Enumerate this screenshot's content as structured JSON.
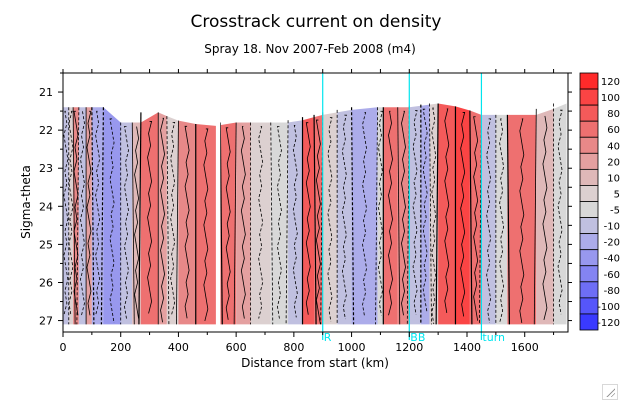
{
  "chart_data": {
    "type": "heatmap",
    "title": "Crosstrack current on density",
    "subtitle": "Spray 18. Nov 2007-Feb 2008 (m4)",
    "xlabel": "Distance from start (km)",
    "ylabel": "Sigma-theta",
    "xlim": [
      0,
      1750
    ],
    "ylim": [
      20.5,
      27.3
    ],
    "y_inverted": true,
    "xticks": [
      0,
      200,
      400,
      600,
      800,
      1000,
      1200,
      1400,
      1600
    ],
    "yticks": [
      21,
      22,
      23,
      24,
      25,
      26,
      27
    ],
    "colorbar": {
      "levels": [
        "120",
        "100",
        "80",
        "60",
        "40",
        "20",
        "10",
        "5",
        "-5",
        "-10",
        "-20",
        "-40",
        "-60",
        "-80",
        "-100",
        "-120"
      ],
      "colors": [
        "#ff2a2a",
        "#fb4444",
        "#f45a5a",
        "#ee7070",
        "#e88888",
        "#e4a0a0",
        "#dfb8b8",
        "#dcd0d0",
        "#d8d8d8",
        "#c0c0e0",
        "#acacea",
        "#9898ee",
        "#8484f2",
        "#6e6ef6",
        "#5656fa",
        "#3a3aff"
      ]
    },
    "markers": [
      {
        "label": "R",
        "x": 900
      },
      {
        "label": "BB",
        "x": 1200
      },
      {
        "label": "turn",
        "x": 1450
      }
    ],
    "marker_color": "#00e5ee",
    "bands": [
      {
        "x0": 0,
        "x1": 20,
        "v": -20
      },
      {
        "x0": 20,
        "x1": 35,
        "v": -5
      },
      {
        "x0": 35,
        "x1": 55,
        "v": 20
      },
      {
        "x0": 55,
        "x1": 80,
        "v": -20
      },
      {
        "x0": 80,
        "x1": 100,
        "v": 10
      },
      {
        "x0": 100,
        "x1": 140,
        "v": -40
      },
      {
        "x0": 140,
        "x1": 200,
        "v": -60
      },
      {
        "x0": 200,
        "x1": 240,
        "v": -20
      },
      {
        "x0": 240,
        "x1": 270,
        "v": 5
      },
      {
        "x0": 270,
        "x1": 330,
        "v": 40
      },
      {
        "x0": 330,
        "x1": 360,
        "v": 10
      },
      {
        "x0": 360,
        "x1": 400,
        "v": -5
      },
      {
        "x0": 400,
        "x1": 460,
        "v": 20
      },
      {
        "x0": 460,
        "x1": 530,
        "v": 40
      },
      {
        "x0": 545,
        "x1": 600,
        "v": 40
      },
      {
        "x0": 600,
        "x1": 650,
        "v": 10
      },
      {
        "x0": 650,
        "x1": 720,
        "v": -5
      },
      {
        "x0": 720,
        "x1": 780,
        "v": -10
      },
      {
        "x0": 780,
        "x1": 830,
        "v": -20
      },
      {
        "x0": 830,
        "x1": 870,
        "v": 60
      },
      {
        "x0": 870,
        "x1": 900,
        "v": 40
      },
      {
        "x0": 900,
        "x1": 950,
        "v": -5
      },
      {
        "x0": 950,
        "x1": 1000,
        "v": -20
      },
      {
        "x0": 1000,
        "x1": 1090,
        "v": -40
      },
      {
        "x0": 1090,
        "x1": 1110,
        "v": -10
      },
      {
        "x0": 1110,
        "x1": 1160,
        "v": 40
      },
      {
        "x0": 1160,
        "x1": 1200,
        "v": 20
      },
      {
        "x0": 1200,
        "x1": 1240,
        "v": -20
      },
      {
        "x0": 1240,
        "x1": 1270,
        "v": -40
      },
      {
        "x0": 1270,
        "x1": 1300,
        "v": -5
      },
      {
        "x0": 1300,
        "x1": 1360,
        "v": 60
      },
      {
        "x0": 1360,
        "x1": 1410,
        "v": 80
      },
      {
        "x0": 1410,
        "x1": 1450,
        "v": 40
      },
      {
        "x0": 1450,
        "x1": 1500,
        "v": -20
      },
      {
        "x0": 1500,
        "x1": 1540,
        "v": -10
      },
      {
        "x0": 1540,
        "x1": 1640,
        "v": 40
      },
      {
        "x0": 1640,
        "x1": 1700,
        "v": 5
      },
      {
        "x0": 1700,
        "x1": 1745,
        "v": -10
      }
    ],
    "top_surface": [
      {
        "x": 0,
        "y": 21.4
      },
      {
        "x": 100,
        "y": 21.4
      },
      {
        "x": 120,
        "y": 21.3
      },
      {
        "x": 160,
        "y": 21.5
      },
      {
        "x": 200,
        "y": 21.8
      },
      {
        "x": 270,
        "y": 21.8
      },
      {
        "x": 320,
        "y": 21.5
      },
      {
        "x": 380,
        "y": 21.7
      },
      {
        "x": 420,
        "y": 21.8
      },
      {
        "x": 520,
        "y": 21.9
      },
      {
        "x": 600,
        "y": 21.8
      },
      {
        "x": 800,
        "y": 21.8
      },
      {
        "x": 900,
        "y": 21.6
      },
      {
        "x": 1050,
        "y": 21.4
      },
      {
        "x": 1200,
        "y": 21.4
      },
      {
        "x": 1300,
        "y": 21.3
      },
      {
        "x": 1380,
        "y": 21.4
      },
      {
        "x": 1450,
        "y": 21.6
      },
      {
        "x": 1650,
        "y": 21.6
      },
      {
        "x": 1745,
        "y": 21.3
      }
    ],
    "bottom_depth": 27.1
  }
}
